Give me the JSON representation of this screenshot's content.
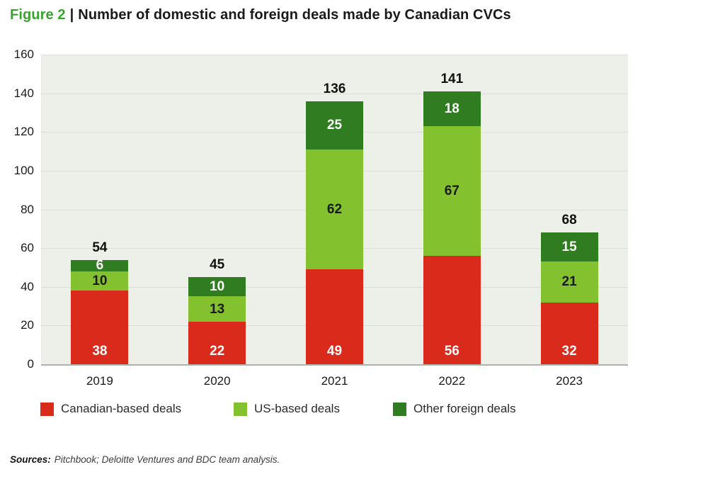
{
  "title": {
    "figure_label": "Figure 2",
    "separator": "|",
    "text": "Number of domestic and foreign deals made by Canadian CVCs"
  },
  "colors": {
    "figure_label_green": "#3aa32f",
    "canadian_red": "#da2a1c",
    "us_green": "#84c12e",
    "other_green": "#2f7d20",
    "plot_background": "#edf0e9",
    "gridline": "#dbe0d6",
    "axis_line": "#b0b2ae"
  },
  "chart_data": {
    "type": "bar",
    "stacked": true,
    "title": "Number of domestic and foreign deals made by Canadian CVCs",
    "categories": [
      "2019",
      "2020",
      "2021",
      "2022",
      "2023"
    ],
    "series": [
      {
        "name": "Canadian-based deals",
        "color_key": "canadian_red",
        "label_color": "#ffffff",
        "values": [
          38,
          22,
          49,
          56,
          32
        ]
      },
      {
        "name": "US-based deals",
        "color_key": "us_green",
        "label_color": "#1a1a1a",
        "values": [
          10,
          13,
          62,
          67,
          21
        ]
      },
      {
        "name": "Other foreign deals",
        "color_key": "other_green",
        "label_color": "#ffffff",
        "values": [
          6,
          10,
          25,
          18,
          15
        ]
      }
    ],
    "totals": [
      54,
      45,
      136,
      141,
      68
    ],
    "xlabel": "",
    "ylabel": "",
    "ylim": [
      0,
      160
    ],
    "yticks": [
      0,
      20,
      40,
      60,
      80,
      100,
      120,
      140,
      160
    ],
    "grid": true,
    "legend_position": "bottom"
  },
  "footer": {
    "sources_label": "Sources:",
    "sources_text": "Pitchbook; Deloitte Ventures and BDC team analysis."
  }
}
